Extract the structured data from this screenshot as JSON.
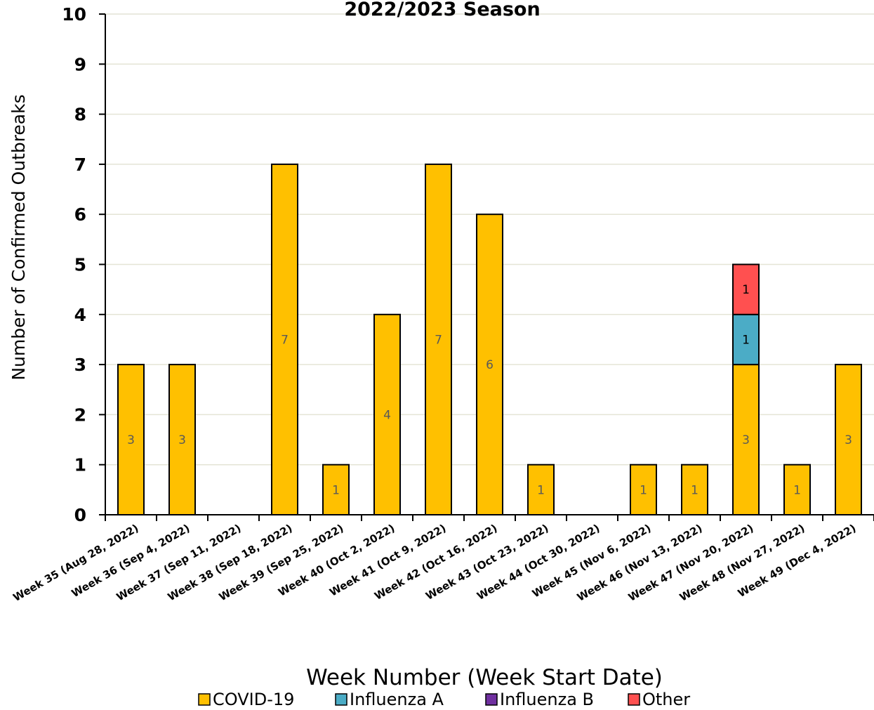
{
  "chart_data": {
    "type": "bar",
    "stacked": true,
    "title": "2022/2023 Season",
    "xlabel": "Week Number (Week Start Date)",
    "ylabel": "Number of Confirmed Outbreaks",
    "ylim": [
      0,
      10
    ],
    "yticks": [
      "0",
      "1",
      "2",
      "3",
      "4",
      "5",
      "6",
      "7",
      "8",
      "9",
      "10"
    ],
    "grid": true,
    "legend_position": "bottom",
    "categories": [
      "Week 35 (Aug 28, 2022)",
      "Week 36 (Sep 4, 2022)",
      "Week 37 (Sep 11, 2022)",
      "Week 38 (Sep 18, 2022)",
      "Week 39 (Sep 25, 2022)",
      "Week 40 (Oct 2, 2022)",
      "Week 41 (Oct 9, 2022)",
      "Week 42 (Oct 16, 2022)",
      "Week 43 (Oct 23, 2022)",
      "Week 44 (Oct 30, 2022)",
      "Week 45 (Nov 6, 2022)",
      "Week 46 (Nov 13, 2022)",
      "Week 47 (Nov 20, 2022)",
      "Week 48 (Nov 27, 2022)",
      "Week 49 (Dec 4, 2022)"
    ],
    "series": [
      {
        "name": "COVID-19",
        "color": "#FFC000",
        "label_color": "#595959",
        "values": [
          3,
          3,
          0,
          7,
          1,
          4,
          7,
          6,
          1,
          0,
          1,
          1,
          3,
          1,
          3
        ]
      },
      {
        "name": "Influenza A",
        "color": "#4BACC6",
        "label_color": "#000000",
        "values": [
          0,
          0,
          0,
          0,
          0,
          0,
          0,
          0,
          0,
          0,
          0,
          0,
          1,
          0,
          0
        ]
      },
      {
        "name": "Influenza B",
        "color": "#7030A0",
        "label_color": "#000000",
        "values": [
          0,
          0,
          0,
          0,
          0,
          0,
          0,
          0,
          0,
          0,
          0,
          0,
          0,
          0,
          0
        ]
      },
      {
        "name": "Other",
        "color": "#FF5050",
        "label_color": "#000000",
        "values": [
          0,
          0,
          0,
          0,
          0,
          0,
          0,
          0,
          0,
          0,
          0,
          0,
          1,
          0,
          0
        ]
      }
    ]
  }
}
